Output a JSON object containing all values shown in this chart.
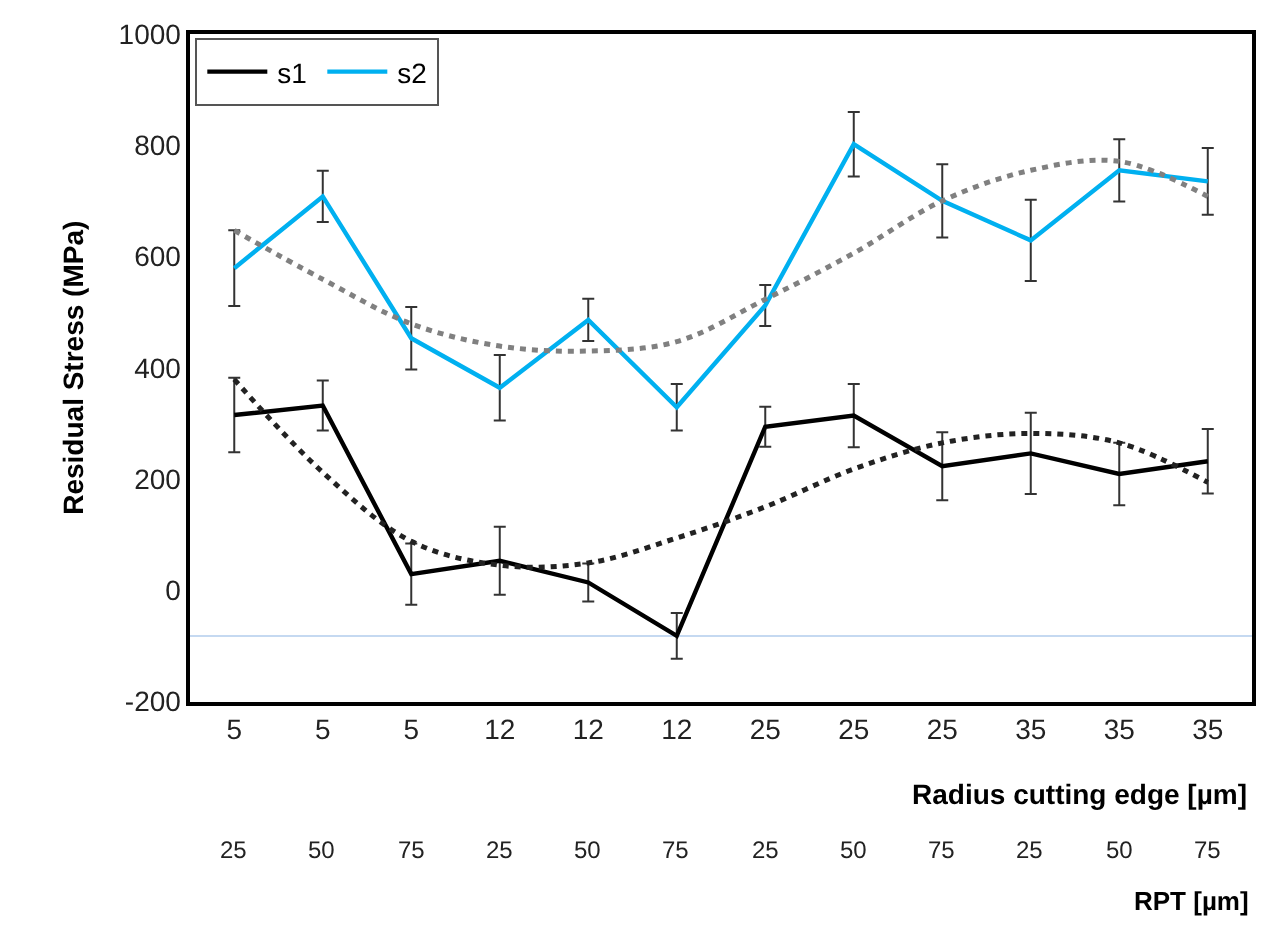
{
  "chart_data": {
    "type": "line",
    "categories": [
      "5",
      "5",
      "5",
      "12",
      "12",
      "12",
      "25",
      "25",
      "25",
      "35",
      "35",
      "35"
    ],
    "annotations": [
      "25",
      "50",
      "75",
      "25",
      "50",
      "75",
      "25",
      "50",
      "75",
      "25",
      "50",
      "75"
    ],
    "xlabel": "Radius cutting edge [µm]",
    "x2label": "RPT [µm]",
    "ylabel": "Residual Stress (MPa)",
    "ylim": [
      -200,
      1000
    ],
    "yticks": [
      -200,
      0,
      200,
      400,
      600,
      800,
      1000
    ],
    "grid": false,
    "legend": "top left",
    "marker": "none",
    "series": [
      {
        "name": "s1",
        "color": "#000000",
        "values": [
          315,
          332,
          29,
          53,
          14,
          -82,
          294,
          314,
          223,
          246,
          209,
          232
        ],
        "errors": [
          67,
          45,
          55,
          61,
          34,
          41,
          36,
          57,
          61,
          73,
          56,
          58
        ]
      },
      {
        "name": "s2",
        "color": "#00b0f0",
        "values": [
          579,
          708,
          453,
          364,
          486,
          329,
          512,
          802,
          700,
          629,
          755,
          735
        ],
        "errors": [
          68,
          46,
          56,
          59,
          38,
          42,
          37,
          58,
          66,
          73,
          56,
          60
        ]
      },
      {
        "type": "line",
        "line_style": "dotted",
        "color": "#222222",
        "values": [
          379,
          212,
          88,
          45,
          49,
          94,
          150,
          218,
          265,
          282,
          265,
          194
        ]
      },
      {
        "type": "line",
        "line_style": "dotted",
        "color": "#808080",
        "values": [
          647,
          559,
          479,
          439,
          430,
          447,
          523,
          606,
          700,
          755,
          771,
          708
        ]
      }
    ],
    "ref_lines": [
      {
        "axis": "y",
        "value": -82,
        "color": "#c5d9f1"
      }
    ]
  }
}
